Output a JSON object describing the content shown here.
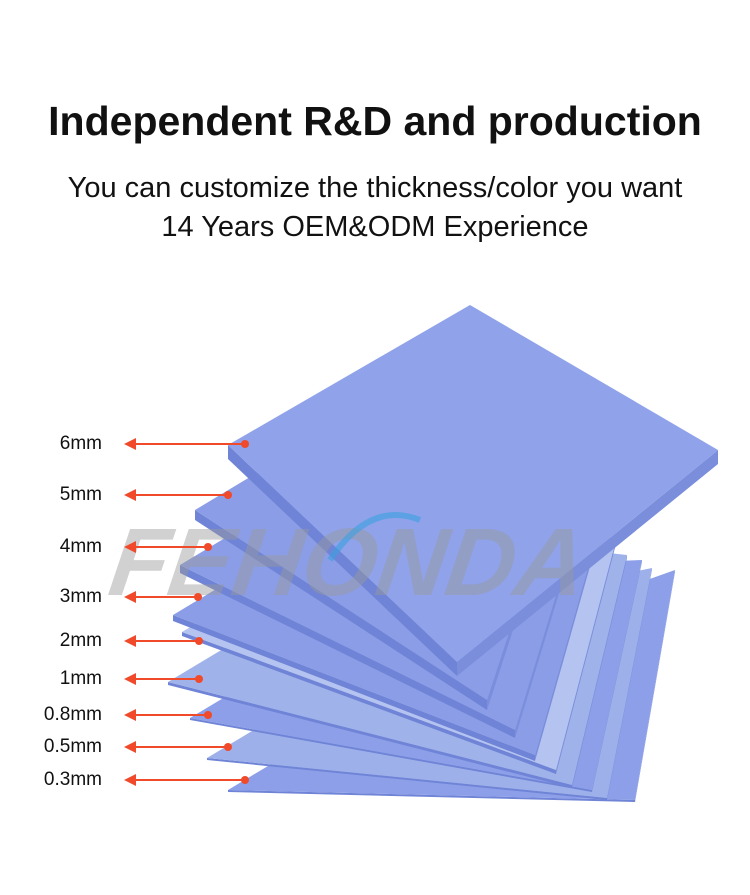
{
  "headline": "Independent R&D and production",
  "subtitle_1": "You can customize the thickness/color you want",
  "subtitle_2": "14 Years OEM&ODM Experience",
  "watermark": "FEHONDA",
  "colors": {
    "sheet": "#8fa2ea",
    "sheet_edge": "#6f84d6",
    "arrow": "#f04a2a",
    "watermark": "#9a9a9a"
  },
  "thickness_labels": [
    "6mm",
    "5mm",
    "4mm",
    "3mm",
    "2mm",
    "1mm",
    "0.8mm",
    "0.5mm",
    "0.3mm"
  ]
}
